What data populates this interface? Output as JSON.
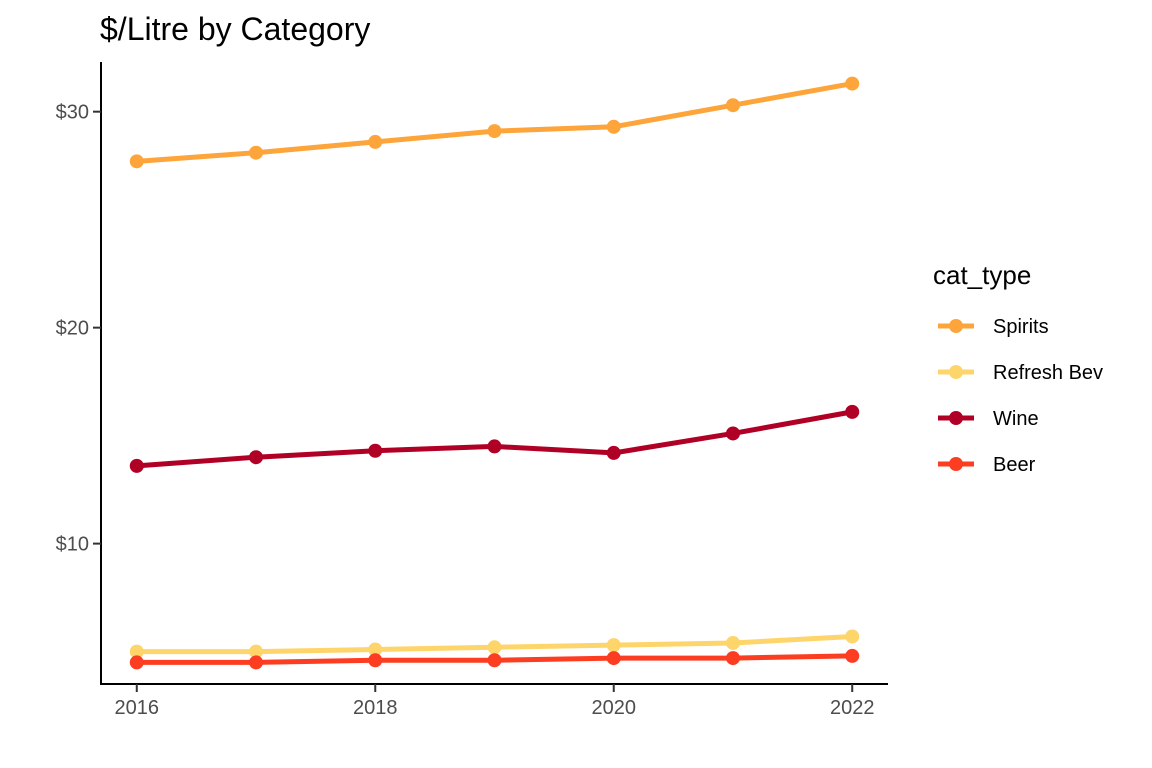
{
  "chart_data": {
    "type": "line",
    "title": "$/Litre by Category",
    "xlabel": "",
    "ylabel": "",
    "x": [
      2016,
      2017,
      2018,
      2019,
      2020,
      2021,
      2022
    ],
    "x_ticks": [
      2016,
      2018,
      2020,
      2022
    ],
    "x_tick_labels": [
      "2016",
      "2018",
      "2020",
      "2022"
    ],
    "xlim": [
      2015.7,
      2022.3
    ],
    "y_ticks": [
      10,
      20,
      30
    ],
    "y_tick_labels": [
      "$10",
      "$20",
      "$30"
    ],
    "ylim": [
      3.5,
      32.3
    ],
    "grid": false,
    "legend": {
      "title": "cat_type",
      "placement": "right"
    },
    "series": [
      {
        "name": "Spirits",
        "color": "#FDA53A",
        "values": [
          27.7,
          28.1,
          28.6,
          29.1,
          29.3,
          30.3,
          31.3
        ]
      },
      {
        "name": "Refresh Bev",
        "color": "#FED56A",
        "values": [
          5.0,
          5.0,
          5.1,
          5.2,
          5.3,
          5.4,
          5.7
        ]
      },
      {
        "name": "Wine",
        "color": "#B10026",
        "values": [
          13.6,
          14.0,
          14.3,
          14.5,
          14.2,
          15.1,
          16.1
        ]
      },
      {
        "name": "Beer",
        "color": "#FC3D22",
        "values": [
          4.5,
          4.5,
          4.6,
          4.6,
          4.7,
          4.7,
          4.8
        ]
      }
    ]
  }
}
